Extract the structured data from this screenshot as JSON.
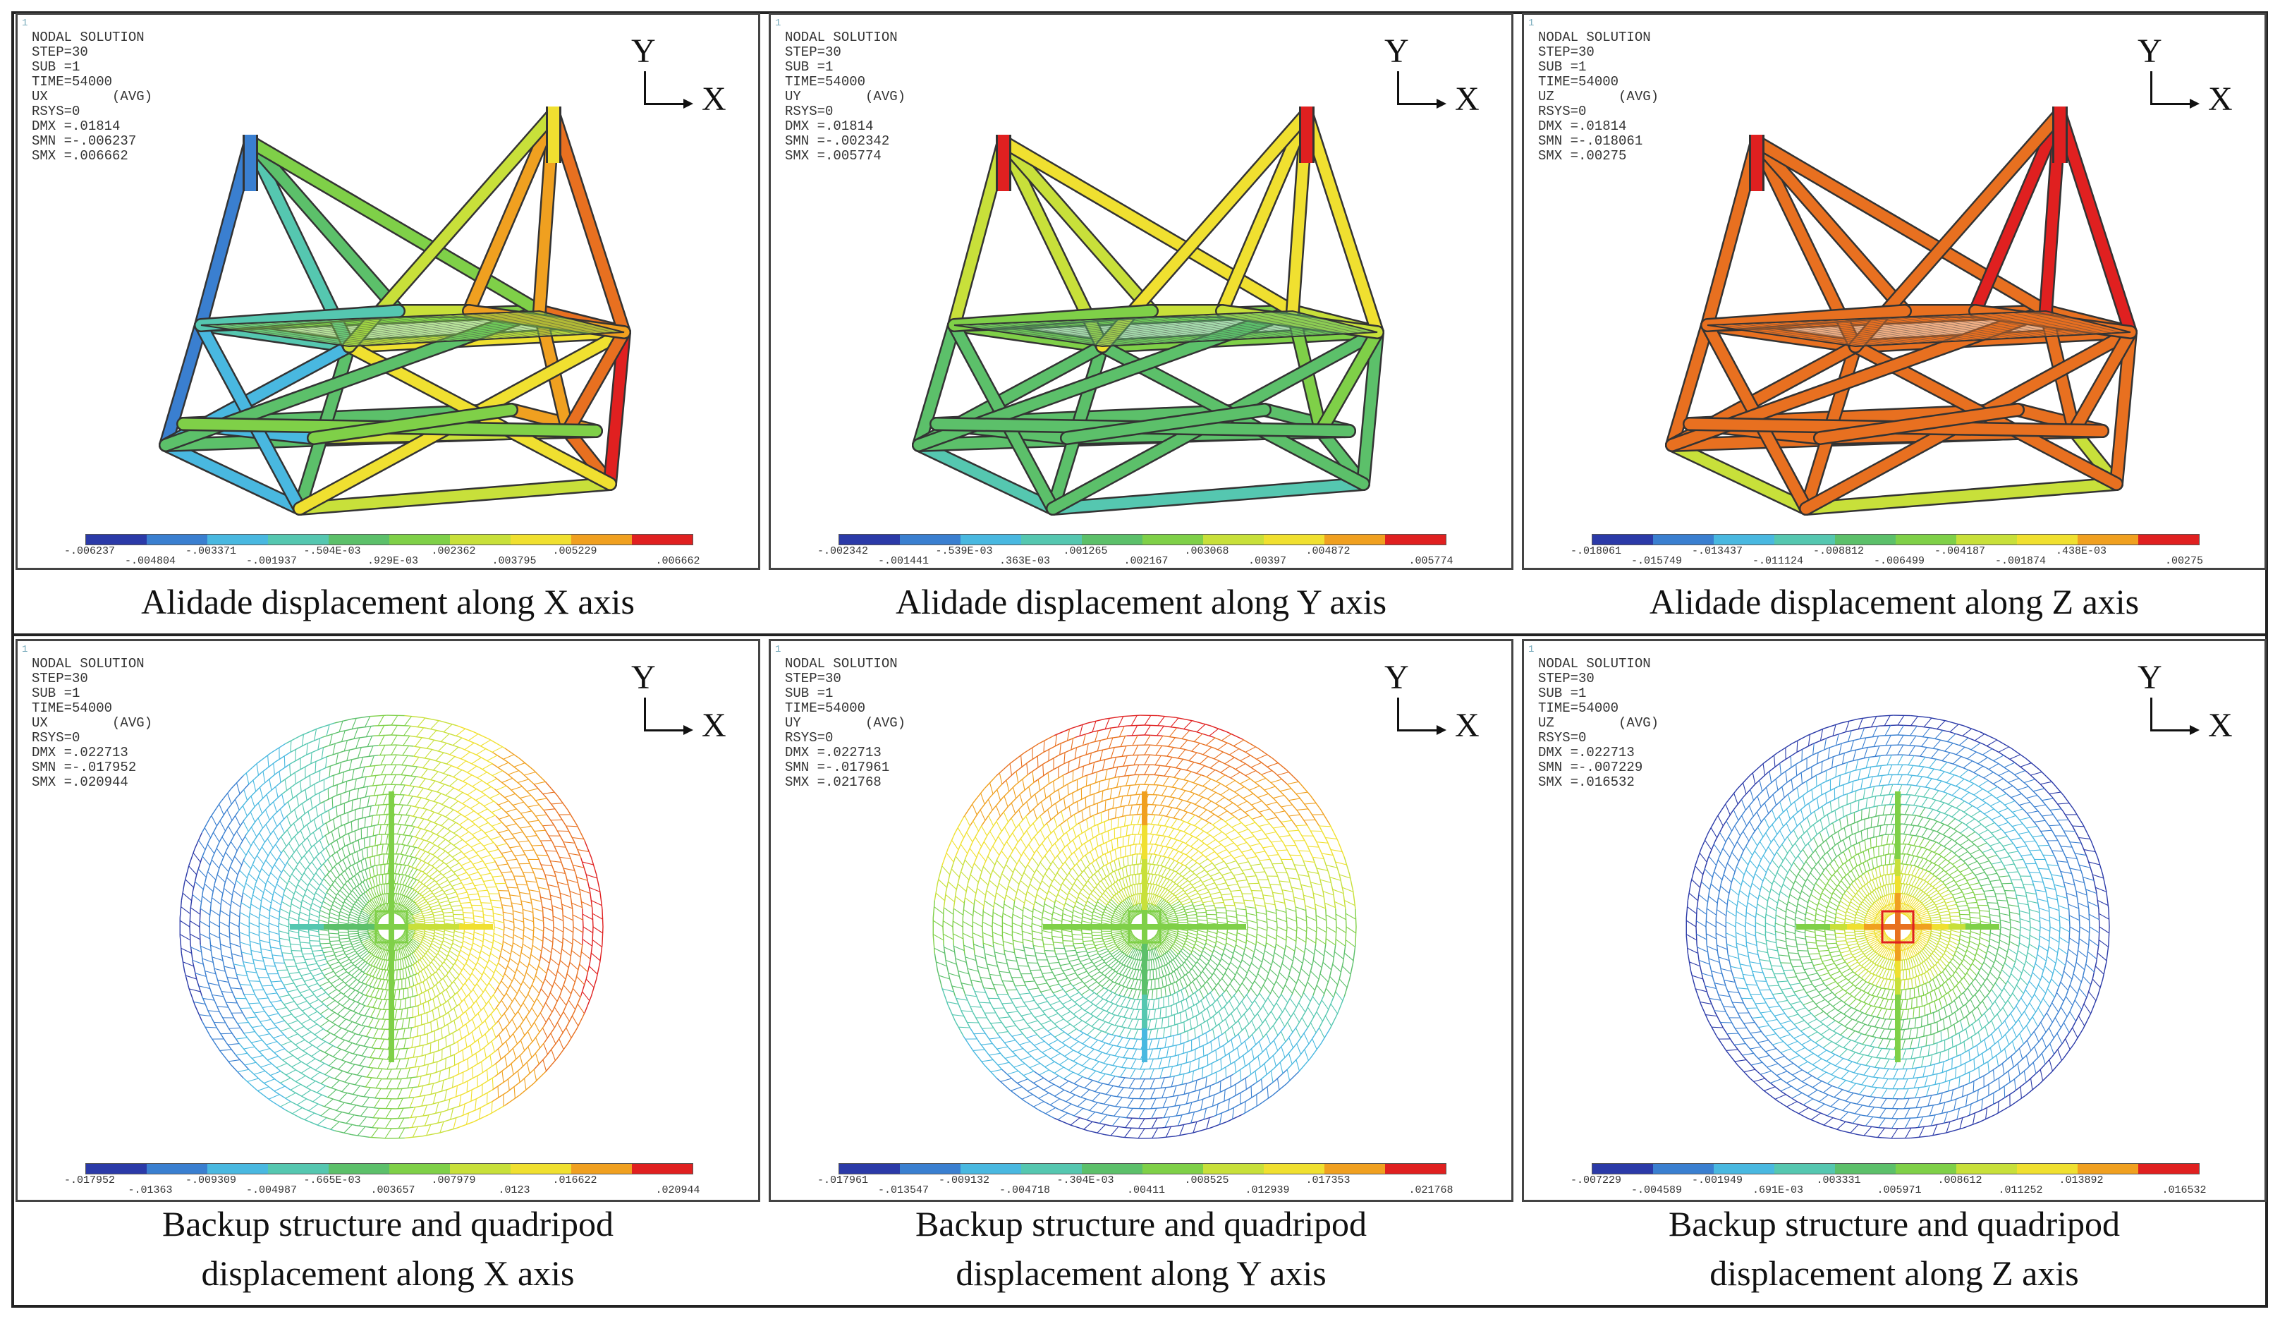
{
  "colors": [
    "#2b3aa8",
    "#3a7fd0",
    "#49b8e0",
    "#55c7b0",
    "#5cc06a",
    "#7fd048",
    "#c8e03a",
    "#f0e030",
    "#f0a020",
    "#e87020",
    "#e02020"
  ],
  "panels": [
    {
      "info": [
        "NODAL SOLUTION",
        "STEP=30",
        "SUB =1",
        "TIME=54000",
        "UX        (AVG)",
        "RSYS=0",
        "DMX =.01814",
        "SMN =-.006237",
        "SMX =.006662"
      ],
      "legend_top": [
        "-.006237",
        "-.003371",
        "-.504E-03",
        ".002362",
        ".005229"
      ],
      "legend_bottom": [
        "-.004804",
        "-.001937",
        ".929E-03",
        ".003795",
        ".006662"
      ],
      "caption": "Alidade displacement along X axis"
    },
    {
      "info": [
        "NODAL SOLUTION",
        "STEP=30",
        "SUB =1",
        "TIME=54000",
        "UY        (AVG)",
        "RSYS=0",
        "DMX =.01814",
        "SMN =-.002342",
        "SMX =.005774"
      ],
      "legend_top": [
        "-.002342",
        "-.539E-03",
        ".001265",
        ".003068",
        ".004872"
      ],
      "legend_bottom": [
        "-.001441",
        ".363E-03",
        ".002167",
        ".00397",
        ".005774"
      ],
      "caption": "Alidade displacement along Y axis"
    },
    {
      "info": [
        "NODAL SOLUTION",
        "STEP=30",
        "SUB =1",
        "TIME=54000",
        "UZ        (AVG)",
        "RSYS=0",
        "DMX =.01814",
        "SMN =-.018061",
        "SMX =.00275"
      ],
      "legend_top": [
        "-.018061",
        "-.013437",
        "-.008812",
        "-.004187",
        ".438E-03"
      ],
      "legend_bottom": [
        "-.015749",
        "-.011124",
        "-.006499",
        "-.001874",
        ".00275"
      ],
      "caption": "Alidade displacement along Z axis"
    },
    {
      "info": [
        "NODAL SOLUTION",
        "STEP=30",
        "SUB =1",
        "TIME=54000",
        "UX        (AVG)",
        "RSYS=0",
        "DMX =.022713",
        "SMN =-.017952",
        "SMX =.020944"
      ],
      "legend_top": [
        "-.017952",
        "-.009309",
        "-.665E-03",
        ".007979",
        ".016622"
      ],
      "legend_bottom": [
        "-.01363",
        "-.004987",
        ".003657",
        ".0123",
        ".020944"
      ],
      "caption": "Backup structure and quadripod\ndisplacement along X axis"
    },
    {
      "info": [
        "NODAL SOLUTION",
        "STEP=30",
        "SUB =1",
        "TIME=54000",
        "UY        (AVG)",
        "RSYS=0",
        "DMX =.022713",
        "SMN =-.017961",
        "SMX =.021768"
      ],
      "legend_top": [
        "-.017961",
        "-.009132",
        "-.304E-03",
        ".008525",
        ".017353"
      ],
      "legend_bottom": [
        "-.013547",
        "-.004718",
        ".00411",
        ".012939",
        ".021768"
      ],
      "caption": "Backup structure and quadripod\ndisplacement along Y axis"
    },
    {
      "info": [
        "NODAL SOLUTION",
        "STEP=30",
        "SUB =1",
        "TIME=54000",
        "UZ        (AVG)",
        "RSYS=0",
        "DMX =.022713",
        "SMN =-.007229",
        "SMX =.016532"
      ],
      "legend_top": [
        "-.007229",
        "-.001949",
        ".003331",
        ".008612",
        ".013892"
      ],
      "legend_bottom": [
        "-.004589",
        ".691E-03",
        ".005971",
        ".011252",
        ".016532"
      ],
      "caption": "Backup structure and quadripod\ndisplacement along Z axis"
    }
  ],
  "axis": {
    "y": "Y",
    "x": "X"
  },
  "corner": "1"
}
